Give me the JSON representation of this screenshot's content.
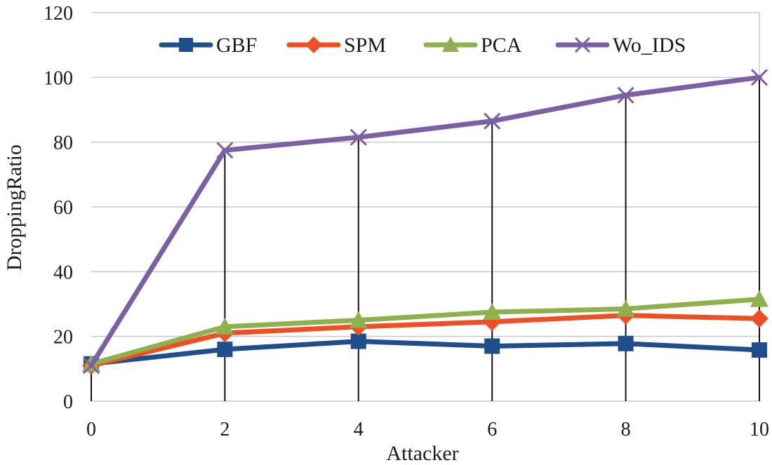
{
  "chart_data": {
    "type": "line",
    "title": "",
    "xlabel": "Attacker",
    "ylabel": "DroppingRatio",
    "x": [
      0,
      2,
      4,
      6,
      8,
      10
    ],
    "xlim": [
      0,
      10
    ],
    "ylim": [
      0,
      120
    ],
    "yticks": [
      0,
      20,
      40,
      60,
      80,
      100,
      120
    ],
    "xticks": [
      0,
      2,
      4,
      6,
      8,
      10
    ],
    "grid": true,
    "legend_position": "top",
    "series": [
      {
        "name": "GBF",
        "color": "#1f4e8c",
        "marker": "square",
        "values": [
          11.5,
          16,
          18.5,
          17,
          17.8,
          15.8
        ]
      },
      {
        "name": "SPM",
        "color": "#f04e23",
        "marker": "diamond",
        "values": [
          11,
          21,
          23,
          24.5,
          26.5,
          25.5
        ]
      },
      {
        "name": "PCA",
        "color": "#8fb04c",
        "marker": "triangle",
        "values": [
          11.5,
          23,
          25,
          27.5,
          28.5,
          31.5
        ]
      },
      {
        "name": "Wo_IDS",
        "color": "#7d5fa6",
        "marker": "x",
        "values": [
          11,
          77.5,
          81.5,
          86.5,
          94.5,
          100
        ]
      }
    ]
  }
}
